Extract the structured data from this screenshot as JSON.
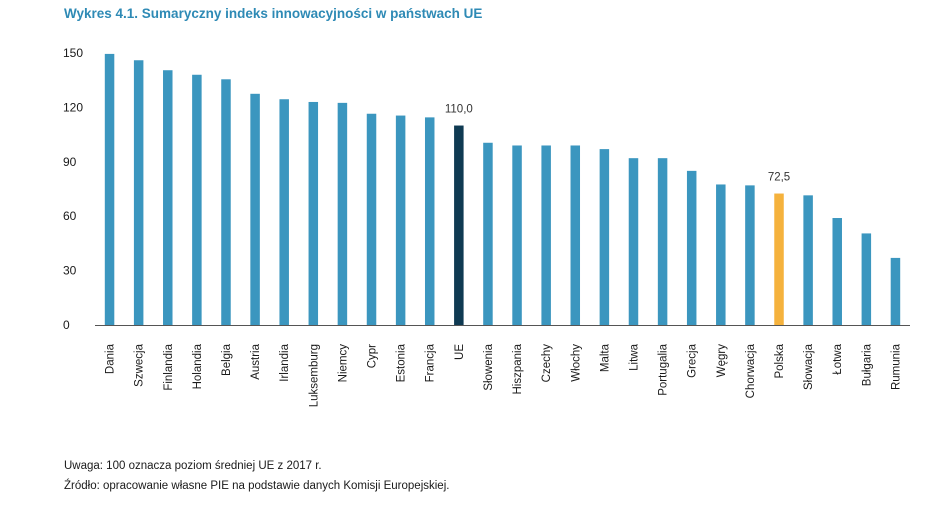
{
  "title": "Wykres 4.1. Sumaryczny indeks innowacyjności w państwach UE",
  "notes": {
    "uwaga": "Uwaga: 100 oznacza poziom średniej UE z 2017 r.",
    "zrodlo": "Źródło: opracowanie własne PIE na podstawie danych Komisji Europejskiej."
  },
  "colors": {
    "default": "#3b96bf",
    "eu": "#0f3a52",
    "poland": "#f5b23d"
  },
  "chart_data": {
    "type": "bar",
    "title": "Wykres 4.1. Sumaryczny indeks innowacyjności w państwach UE",
    "xlabel": "",
    "ylabel": "",
    "ylim": [
      0,
      150
    ],
    "yticks": [
      0,
      30,
      60,
      90,
      120,
      150
    ],
    "grid": false,
    "categories": [
      "Dania",
      "Szwecja",
      "Finlandia",
      "Holandia",
      "Belgia",
      "Austria",
      "Irlandia",
      "Luksemburg",
      "Niemcy",
      "Cypr",
      "Estonia",
      "Francja",
      "UE",
      "Słowenia",
      "Hiszpania",
      "Czechy",
      "Włochy",
      "Malta",
      "Litwa",
      "Portugalia",
      "Grecja",
      "Węgry",
      "Chorwacja",
      "Polska",
      "Słowacja",
      "Łotwa",
      "Bułgaria",
      "Rumunia"
    ],
    "values": [
      149.5,
      146.0,
      140.5,
      138.0,
      135.5,
      127.5,
      124.5,
      123.0,
      122.5,
      116.5,
      115.5,
      114.5,
      110.0,
      100.5,
      99.0,
      99.0,
      99.0,
      97.0,
      92.0,
      92.0,
      85.0,
      77.5,
      77.0,
      72.5,
      71.5,
      59.0,
      50.5,
      37.0
    ],
    "highlight": {
      "UE": "eu",
      "Polska": "poland"
    },
    "data_labels": [
      {
        "category": "UE",
        "text": "110,0"
      },
      {
        "category": "Polska",
        "text": "72,5"
      }
    ]
  }
}
